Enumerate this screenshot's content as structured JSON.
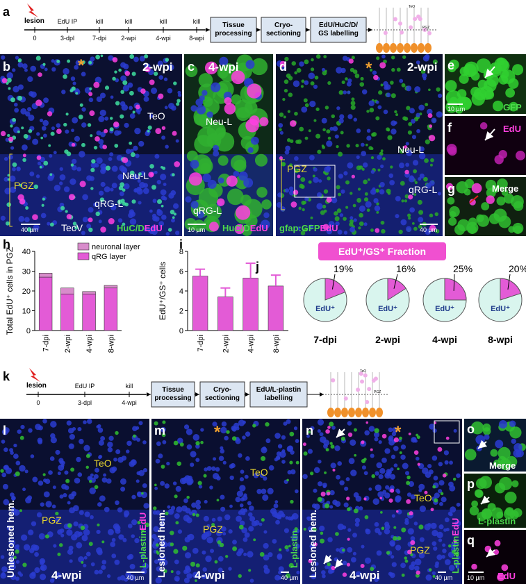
{
  "figure": {
    "a": {
      "letter": "a",
      "lesion": "lesion",
      "ticks": [
        {
          "bottom": "0"
        },
        {
          "top": "EdU  IP",
          "bottom": "3-dpl"
        },
        {
          "top": "kill",
          "bottom": "7-dpi"
        },
        {
          "top": "kill",
          "bottom": "2-wpi"
        },
        {
          "top": "kill",
          "bottom": "4-wpi"
        },
        {
          "top": "kill",
          "bottom": "8-wpi"
        }
      ],
      "steps": [
        [
          "Tissue",
          "processing"
        ],
        [
          "Cryo-",
          "sectioning"
        ],
        [
          "EdU/HuC/D/",
          "GS labelling"
        ]
      ],
      "schematic": [
        "TeO",
        "PGZ"
      ]
    },
    "b": {
      "letter": "b",
      "time": "2-wpi",
      "star": "*",
      "labels": [
        "TeO",
        "Neu-L",
        "PGZ",
        "qRG-L",
        "TecV"
      ],
      "scale": "40 µm",
      "stain": [
        "HuC/D",
        "EdU"
      ]
    },
    "c": {
      "letter": "c",
      "time": "4-wpi",
      "labels": [
        "Neu-L",
        "qRG-L"
      ],
      "scale": "10 µm",
      "stain": [
        "HuC/D",
        "EdU"
      ]
    },
    "d": {
      "letter": "d",
      "time": "2-wpi",
      "star": "*",
      "labels": [
        "PGZ",
        "Neu-L",
        "qRG-L"
      ],
      "scale": "40 µm",
      "stain": [
        "gfap:GFP",
        "EdU"
      ]
    },
    "e": {
      "letter": "e",
      "scale": "10 µm",
      "stain": "GFP"
    },
    "f": {
      "letter": "f",
      "stain": "EdU"
    },
    "g": {
      "letter": "g",
      "stain": "Merge"
    },
    "k": {
      "letter": "k",
      "lesion": "lesion",
      "ticks": [
        {
          "bottom": "0"
        },
        {
          "top": "EdU  IP",
          "bottom": "3-dpl"
        },
        {
          "top": "kill",
          "bottom": "4-wpi"
        }
      ],
      "steps": [
        [
          "Tissue",
          "processing"
        ],
        [
          "Cryo-",
          "sectioning"
        ],
        [
          "EdU/L-plastin",
          "labelling"
        ]
      ],
      "schematic": [
        "TeO",
        "PGZ"
      ]
    },
    "l": {
      "letter": "l",
      "labels": [
        "TeO",
        "PGZ"
      ],
      "side": "Unlesioned hem.",
      "time": "4-wpi",
      "scale": "40 µm",
      "stain": [
        "L-plastin",
        "EdU"
      ]
    },
    "m": {
      "letter": "m",
      "star": "*",
      "labels": [
        "TeO",
        "PGZ"
      ],
      "side": "Lesioned hem.",
      "time": "4-wpi",
      "scale": "40 µm",
      "stain": [
        "L-plastin"
      ]
    },
    "n": {
      "letter": "n",
      "star": "*",
      "labels": [
        "TeO",
        "PGZ"
      ],
      "side": "Lesioned hem.",
      "time": "4-wpi",
      "scale": "40 µm",
      "stain": [
        "L-plastin",
        "EdU"
      ]
    },
    "o": {
      "letter": "o",
      "stain": "Merge"
    },
    "p": {
      "letter": "p",
      "stain": "L-plastin"
    },
    "q": {
      "letter": "q",
      "scale": "10 µm",
      "stain": "EdU"
    }
  },
  "chart_data": [
    {
      "type": "bar",
      "letter": "h",
      "ylabel": "Total EdU⁺ cells in PGZ",
      "categories": [
        "7-dpi",
        "2-wpi",
        "4-wpi",
        "8-wpi"
      ],
      "stacked": true,
      "series": [
        {
          "name": "qRG layer",
          "color": "#e35bd6",
          "values": [
            27,
            18.5,
            18.5,
            21.5
          ]
        },
        {
          "name": "neuronal layer",
          "color": "#d88ccb",
          "values": [
            2,
            3,
            1.2,
            1.3
          ]
        }
      ],
      "ylim": [
        0,
        40
      ],
      "yticks": [
        0,
        10,
        20,
        30,
        40
      ]
    },
    {
      "type": "bar",
      "letter": "i",
      "ylabel": "EdU⁺/GS⁺ cells",
      "categories": [
        "7-dpi",
        "2-wpi",
        "4-wpi",
        "8-wpi"
      ],
      "values": [
        5.5,
        3.4,
        5.3,
        4.5
      ],
      "errors": [
        0.7,
        0.9,
        1.5,
        1.1
      ],
      "color": "#e35bd6",
      "ylim": [
        0,
        8
      ],
      "yticks": [
        0,
        2,
        4,
        6,
        8
      ]
    },
    {
      "type": "pie",
      "letter": "j",
      "title": "EdU⁺/GS⁺ Fraction",
      "categories": [
        "7-dpi",
        "2-wpi",
        "4-wpi",
        "8-wpi"
      ],
      "values": [
        19,
        16,
        25,
        20
      ],
      "value_labels": [
        "19%",
        "16%",
        "25%",
        "20%"
      ],
      "slice_label": "EdU⁺",
      "color": "#e35bd6",
      "rest_color": "#d9f5ee"
    }
  ]
}
